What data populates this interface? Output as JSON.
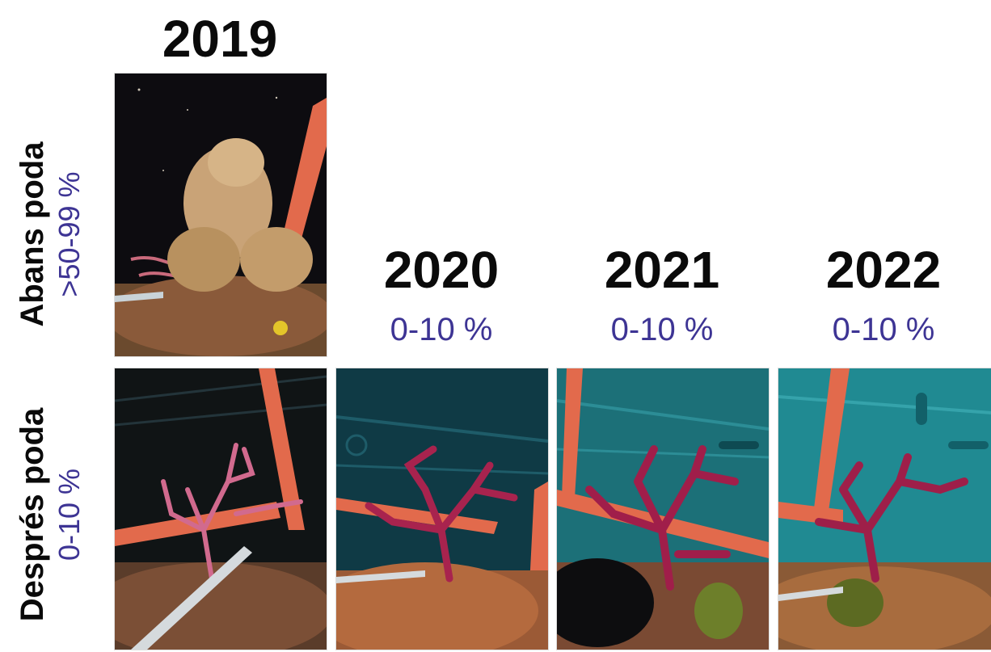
{
  "columns": [
    {
      "year": "2019"
    },
    {
      "year": "2020",
      "percent": "0-10 %"
    },
    {
      "year": "2021",
      "percent": "0-10 %"
    },
    {
      "year": "2022",
      "percent": "0-10 %"
    }
  ],
  "rows": [
    {
      "label": "Abans poda",
      "percent": ">50-99 %"
    },
    {
      "label": "Després poda",
      "percent": "0-10 %"
    }
  ],
  "photos": [
    {
      "id": "2019-abans",
      "background": "#0d0c10",
      "coral": "#c96a7c",
      "overgrowth": "#c9a377"
    },
    {
      "id": "2019-despres",
      "background": "#101415",
      "coral": "#d16a8e"
    },
    {
      "id": "2020-despres",
      "background": "#0f3a45",
      "coral": "#a8234e"
    },
    {
      "id": "2021-despres",
      "background": "#1c7078",
      "coral": "#a01e4a"
    },
    {
      "id": "2022-despres",
      "background": "#208a92",
      "coral": "#9e1f49"
    }
  ]
}
